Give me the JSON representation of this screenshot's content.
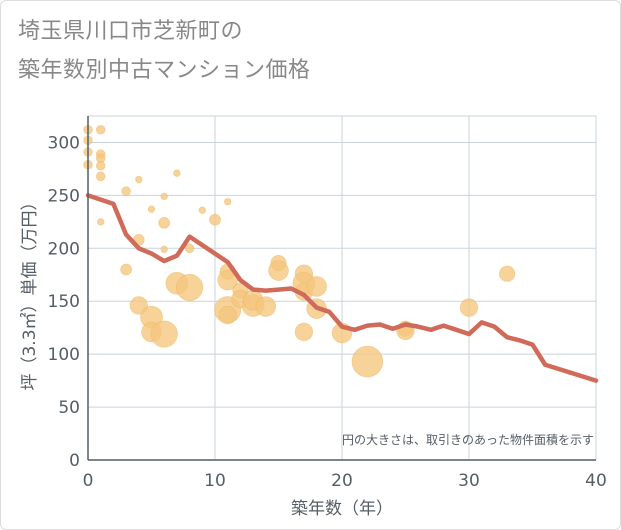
{
  "title_line1": "埼玉県川口市芝新町の",
  "title_line2": "築年数別中古マンション価格",
  "chart_data": {
    "type": "scatter",
    "title": "埼玉県川口市芝新町の築年数別中古マンション価格",
    "xlabel": "築年数（年）",
    "ylabel": "坪（3.3㎡）単価（万円）",
    "xlim": [
      0,
      40
    ],
    "ylim": [
      0,
      325
    ],
    "x_ticks": [
      0,
      10,
      20,
      30,
      40
    ],
    "y_ticks": [
      0,
      50,
      100,
      150,
      200,
      250,
      300
    ],
    "grid": true,
    "note": "円の大きさは、取引きのあった物件面積を示す",
    "colors": {
      "bubble": "#f5c77e",
      "bubble_edge": "#eab564",
      "trend": "#d06b5a",
      "grid": "#c9d3dd",
      "axis": "#555d66"
    },
    "series": [
      {
        "type": "scatter",
        "points": [
          {
            "x": 0,
            "y": 312,
            "s": 2
          },
          {
            "x": 0,
            "y": 302,
            "s": 2
          },
          {
            "x": 0,
            "y": 291,
            "s": 2
          },
          {
            "x": 0,
            "y": 279,
            "s": 2
          },
          {
            "x": 1,
            "y": 312,
            "s": 2
          },
          {
            "x": 1,
            "y": 289,
            "s": 2
          },
          {
            "x": 1,
            "y": 285,
            "s": 2
          },
          {
            "x": 1,
            "y": 278,
            "s": 2
          },
          {
            "x": 1,
            "y": 268,
            "s": 2
          },
          {
            "x": 1,
            "y": 225,
            "s": 1.5
          },
          {
            "x": 3,
            "y": 254,
            "s": 2
          },
          {
            "x": 3,
            "y": 180,
            "s": 2.5
          },
          {
            "x": 4,
            "y": 265,
            "s": 1.5
          },
          {
            "x": 4,
            "y": 208,
            "s": 2.5
          },
          {
            "x": 4,
            "y": 146,
            "s": 4
          },
          {
            "x": 5,
            "y": 237,
            "s": 1.5
          },
          {
            "x": 5,
            "y": 135,
            "s": 5
          },
          {
            "x": 5,
            "y": 121,
            "s": 4.5
          },
          {
            "x": 6,
            "y": 249,
            "s": 1.5
          },
          {
            "x": 6,
            "y": 224,
            "s": 2.5
          },
          {
            "x": 6,
            "y": 199,
            "s": 1.5
          },
          {
            "x": 6,
            "y": 119,
            "s": 6
          },
          {
            "x": 7,
            "y": 271,
            "s": 1.5
          },
          {
            "x": 7,
            "y": 167,
            "s": 5
          },
          {
            "x": 8,
            "y": 200,
            "s": 2
          },
          {
            "x": 8,
            "y": 163,
            "s": 6
          },
          {
            "x": 9,
            "y": 236,
            "s": 1.5
          },
          {
            "x": 10,
            "y": 227,
            "s": 2.5
          },
          {
            "x": 11,
            "y": 244,
            "s": 1.5
          },
          {
            "x": 11,
            "y": 178,
            "s": 3.5
          },
          {
            "x": 11,
            "y": 170,
            "s": 4.5
          },
          {
            "x": 11,
            "y": 142,
            "s": 6
          },
          {
            "x": 11,
            "y": 137,
            "s": 4
          },
          {
            "x": 12,
            "y": 160,
            "s": 3.5
          },
          {
            "x": 12,
            "y": 152,
            "s": 4
          },
          {
            "x": 13,
            "y": 146,
            "s": 5
          },
          {
            "x": 13,
            "y": 151,
            "s": 4.5
          },
          {
            "x": 14,
            "y": 145,
            "s": 4.5
          },
          {
            "x": 15,
            "y": 186,
            "s": 3.5
          },
          {
            "x": 15,
            "y": 179,
            "s": 4.5
          },
          {
            "x": 17,
            "y": 176,
            "s": 4
          },
          {
            "x": 17,
            "y": 167,
            "s": 5
          },
          {
            "x": 17,
            "y": 159,
            "s": 4
          },
          {
            "x": 17,
            "y": 121,
            "s": 4
          },
          {
            "x": 18,
            "y": 164,
            "s": 4.5
          },
          {
            "x": 18,
            "y": 143,
            "s": 4.5
          },
          {
            "x": 20,
            "y": 120,
            "s": 4.5
          },
          {
            "x": 22,
            "y": 93,
            "s": 7
          },
          {
            "x": 25,
            "y": 124,
            "s": 3.5
          },
          {
            "x": 25,
            "y": 122,
            "s": 4
          },
          {
            "x": 30,
            "y": 144,
            "s": 4
          },
          {
            "x": 33,
            "y": 176,
            "s": 3.5
          }
        ]
      },
      {
        "type": "line",
        "points": [
          {
            "x": 0,
            "y": 250
          },
          {
            "x": 2,
            "y": 242
          },
          {
            "x": 3,
            "y": 213
          },
          {
            "x": 4,
            "y": 200
          },
          {
            "x": 5,
            "y": 195
          },
          {
            "x": 6,
            "y": 188
          },
          {
            "x": 7,
            "y": 193
          },
          {
            "x": 8,
            "y": 211
          },
          {
            "x": 9,
            "y": 203
          },
          {
            "x": 10,
            "y": 195
          },
          {
            "x": 11,
            "y": 187
          },
          {
            "x": 12,
            "y": 170
          },
          {
            "x": 13,
            "y": 161
          },
          {
            "x": 14,
            "y": 160
          },
          {
            "x": 15,
            "y": 161
          },
          {
            "x": 16,
            "y": 162
          },
          {
            "x": 17,
            "y": 156
          },
          {
            "x": 18,
            "y": 144
          },
          {
            "x": 19,
            "y": 140
          },
          {
            "x": 20,
            "y": 126
          },
          {
            "x": 21,
            "y": 123
          },
          {
            "x": 22,
            "y": 127
          },
          {
            "x": 23,
            "y": 128
          },
          {
            "x": 24,
            "y": 124
          },
          {
            "x": 25,
            "y": 128
          },
          {
            "x": 26,
            "y": 126
          },
          {
            "x": 27,
            "y": 123
          },
          {
            "x": 28,
            "y": 127
          },
          {
            "x": 29,
            "y": 123
          },
          {
            "x": 30,
            "y": 119
          },
          {
            "x": 31,
            "y": 130
          },
          {
            "x": 32,
            "y": 126
          },
          {
            "x": 33,
            "y": 116
          },
          {
            "x": 34,
            "y": 113
          },
          {
            "x": 35,
            "y": 109
          },
          {
            "x": 36,
            "y": 90
          },
          {
            "x": 40,
            "y": 75
          }
        ]
      }
    ]
  }
}
